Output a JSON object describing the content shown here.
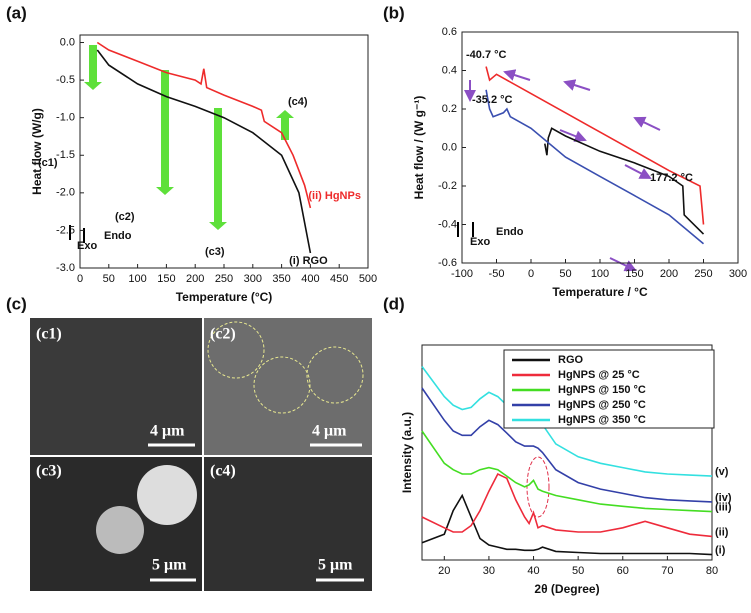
{
  "chart_data": [
    {
      "type": "line",
      "label": "(a)",
      "x_label": "Temperature (°C)",
      "y_label": "Heat flow (W/g)",
      "xlim": [
        0,
        500
      ],
      "xticks": [
        0,
        50,
        100,
        150,
        200,
        250,
        300,
        350,
        400,
        450,
        500
      ],
      "ylim": [
        -3.0,
        0.1
      ],
      "yticks": [
        {
          "value": -3,
          "label": "-3.0"
        },
        -2.5,
        {
          "value": -2,
          "label": "-2.0"
        },
        -1.5,
        {
          "value": -1,
          "label": "-1.0"
        },
        -0.5,
        {
          "value": 0,
          "label": "0.0"
        }
      ],
      "annotations": [
        "(c1)",
        "(c2)",
        "(c3)",
        "(c4)",
        "Exo",
        "Endo"
      ],
      "series": [
        {
          "name": "(ii) HgNPs",
          "color": "#ee2b2b",
          "x": [
            30,
            50,
            100,
            150,
            200,
            210,
            215,
            220,
            250,
            300,
            315,
            320,
            350,
            370,
            390,
            400
          ],
          "values": [
            0.0,
            -0.1,
            -0.25,
            -0.4,
            -0.5,
            -0.55,
            -0.35,
            -0.6,
            -0.7,
            -0.85,
            -0.9,
            -1.05,
            -1.2,
            -1.5,
            -1.9,
            -2.2
          ]
        },
        {
          "name": "(i) RGO",
          "color": "#111111",
          "x": [
            30,
            50,
            100,
            150,
            200,
            250,
            300,
            350,
            380,
            400
          ],
          "values": [
            -0.1,
            -0.3,
            -0.55,
            -0.72,
            -0.85,
            -1.0,
            -1.2,
            -1.5,
            -2.0,
            -2.8
          ]
        }
      ]
    },
    {
      "type": "line",
      "label": "(b)",
      "x_label": "Temperature / °C",
      "y_label": "Heat flow / (W g⁻¹)",
      "xlim": [
        -100,
        300
      ],
      "xticks": [
        -100,
        -50,
        0,
        50,
        100,
        150,
        200,
        250,
        300
      ],
      "ylim": [
        -0.6,
        0.6
      ],
      "yticks": [
        -0.6,
        -0.4,
        -0.2,
        {
          "value": 0,
          "label": "0.0"
        },
        0.2,
        0.4,
        0.6
      ],
      "annotations": [
        "-40.7 °C",
        "-35.2 °C",
        "177.2 °C",
        "Exo",
        "Endo"
      ],
      "series": [
        {
          "color": "#ee2b2b",
          "x": [
            -65,
            -60,
            -50,
            -40,
            0,
            50,
            100,
            150,
            200,
            245,
            250
          ],
          "values": [
            0.42,
            0.35,
            0.38,
            0.36,
            0.28,
            0.18,
            0.08,
            -0.02,
            -0.12,
            -0.2,
            -0.4
          ]
        },
        {
          "color": "#111111",
          "x": [
            20,
            23,
            25,
            30,
            50,
            100,
            150,
            200,
            220,
            222,
            250
          ],
          "values": [
            0.02,
            -0.04,
            0.05,
            0.1,
            0.06,
            -0.02,
            -0.08,
            -0.15,
            -0.2,
            -0.35,
            -0.45
          ]
        },
        {
          "color": "#3a4fb0",
          "x": [
            -65,
            -60,
            -55,
            -40,
            -35,
            -30,
            0,
            50,
            100,
            150,
            200,
            250
          ],
          "values": [
            0.3,
            0.2,
            0.16,
            0.18,
            0.2,
            0.16,
            0.1,
            -0.05,
            -0.15,
            -0.25,
            -0.35,
            -0.5
          ]
        }
      ]
    },
    {
      "type": "line",
      "label": "(d)",
      "x_label": "2θ (Degree)",
      "y_label": "Intensity (a.u.)",
      "xlim": [
        15,
        80
      ],
      "xticks": [
        20,
        30,
        40,
        50,
        60,
        70,
        80
      ],
      "ylim": [
        0,
        10
      ],
      "annotations": [
        "(i)",
        "(ii)",
        "(iii)",
        "(iv)",
        "(v)"
      ],
      "x": [
        15,
        20,
        22,
        24,
        26,
        28,
        30,
        32,
        34,
        36,
        38,
        39,
        40,
        41,
        42,
        45,
        50,
        55,
        60,
        65,
        70,
        75,
        80
      ],
      "series": [
        {
          "name": "RGO",
          "color": "#111111",
          "values": [
            0.8,
            1.2,
            2.3,
            3.0,
            2.0,
            1.0,
            0.7,
            0.6,
            0.5,
            0.5,
            0.45,
            0.45,
            0.45,
            0.5,
            0.6,
            0.4,
            0.35,
            0.3,
            0.3,
            0.3,
            0.3,
            0.3,
            0.25
          ]
        },
        {
          "name": "HgNPS @ 25 °C",
          "color": "#ee2b3b",
          "values": [
            2.0,
            1.5,
            1.3,
            1.3,
            1.6,
            2.3,
            3.2,
            4.0,
            3.8,
            2.8,
            2.0,
            1.7,
            2.2,
            1.5,
            1.6,
            1.4,
            1.3,
            1.3,
            1.5,
            1.8,
            1.5,
            1.2,
            1.1
          ]
        },
        {
          "name": "HgNPS @ 150 °C",
          "color": "#44dd22",
          "values": [
            6.0,
            4.5,
            4.2,
            4.0,
            4.0,
            4.2,
            4.3,
            4.2,
            3.9,
            3.6,
            3.4,
            3.5,
            3.7,
            3.3,
            3.2,
            3.0,
            2.8,
            2.6,
            2.5,
            2.4,
            2.35,
            2.3,
            2.25
          ]
        },
        {
          "name": "HgNPS @ 250 °C",
          "color": "#3340a8",
          "values": [
            8.0,
            6.5,
            6.0,
            5.8,
            5.8,
            6.2,
            6.5,
            6.3,
            5.9,
            5.5,
            5.3,
            5.3,
            5.3,
            5.2,
            5.0,
            4.2,
            3.6,
            3.3,
            3.1,
            2.9,
            2.8,
            2.75,
            2.7
          ]
        },
        {
          "name": "HgNPS @ 350 °C",
          "color": "#33e0e0",
          "values": [
            9.0,
            7.6,
            7.2,
            7.0,
            7.1,
            7.5,
            7.8,
            7.6,
            7.2,
            6.9,
            6.6,
            6.5,
            6.6,
            6.5,
            6.3,
            5.4,
            4.8,
            4.5,
            4.3,
            4.1,
            4.0,
            3.95,
            3.9
          ]
        }
      ]
    }
  ],
  "images": {
    "label": "(c)",
    "tiles": [
      {
        "label": "(c1)",
        "scale": "4 μm"
      },
      {
        "label": "(c2)",
        "scale": "4 μm"
      },
      {
        "label": "(c3)",
        "scale": "5 μm"
      },
      {
        "label": "(c4)",
        "scale": "5 μm"
      }
    ]
  }
}
